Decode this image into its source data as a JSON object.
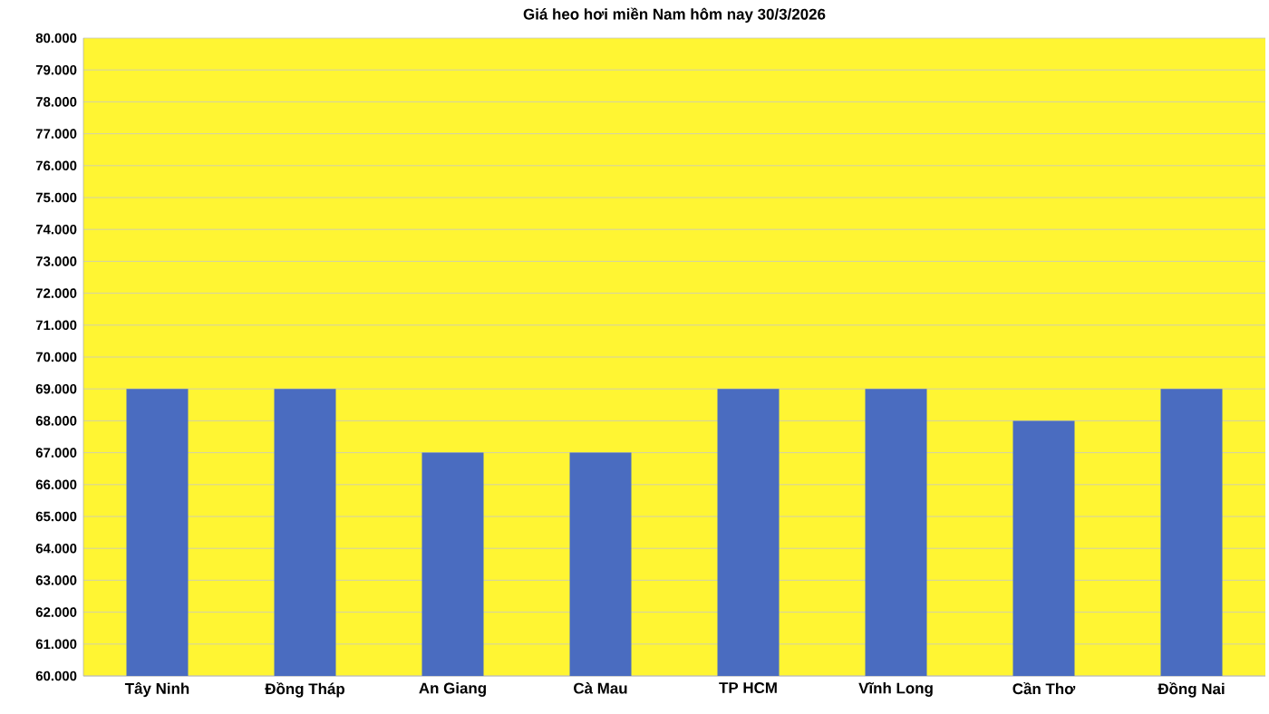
{
  "chart_data": {
    "type": "bar",
    "title": "Giá heo hơi miền Nam hôm nay 30/3/2026",
    "categories": [
      "Tây Ninh",
      "Đồng Tháp",
      "An Giang",
      "Cà Mau",
      "TP HCM",
      "Vĩnh Long",
      "Cần Thơ",
      "Đồng Nai"
    ],
    "values": [
      69000,
      69000,
      67000,
      67000,
      69000,
      69000,
      68000,
      69000
    ],
    "color": "#4a6cc0",
    "ylim": [
      60000,
      80000
    ],
    "yticks": [
      {
        "value": 60000,
        "label": "60.000"
      },
      {
        "value": 61000,
        "label": "61.000"
      },
      {
        "value": 62000,
        "label": "62.000"
      },
      {
        "value": 63000,
        "label": "63.000"
      },
      {
        "value": 64000,
        "label": "64.000"
      },
      {
        "value": 65000,
        "label": "65.000"
      },
      {
        "value": 66000,
        "label": "66.000"
      },
      {
        "value": 67000,
        "label": "67.000"
      },
      {
        "value": 68000,
        "label": "68.000"
      },
      {
        "value": 69000,
        "label": "69.000"
      },
      {
        "value": 70000,
        "label": "70.000"
      },
      {
        "value": 71000,
        "label": "71.000"
      },
      {
        "value": 72000,
        "label": "72.000"
      },
      {
        "value": 73000,
        "label": "73.000"
      },
      {
        "value": 74000,
        "label": "74.000"
      },
      {
        "value": 75000,
        "label": "75.000"
      },
      {
        "value": 76000,
        "label": "76.000"
      },
      {
        "value": 77000,
        "label": "77.000"
      },
      {
        "value": 78000,
        "label": "78.000"
      },
      {
        "value": 79000,
        "label": "79.000"
      },
      {
        "value": 80000,
        "label": "80.000"
      }
    ],
    "grid": "y"
  }
}
